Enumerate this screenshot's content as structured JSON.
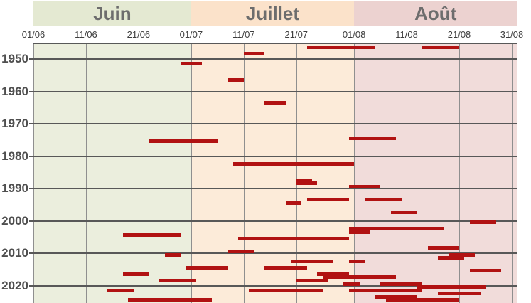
{
  "header": {
    "months": [
      {
        "label": "Juin",
        "start": "01/06",
        "end": "30/06",
        "band_color": "#e4e9d2",
        "plot_color": "#ebeedd"
      },
      {
        "label": "Juillet",
        "start": "01/07",
        "end": "31/07",
        "band_color": "#fbe2ca",
        "plot_color": "#fcebd9"
      },
      {
        "label": "Août",
        "start": "01/08",
        "end": "31/08",
        "band_color": "#ecd2d0",
        "plot_color": "#f1dcda"
      }
    ]
  },
  "x_axis": {
    "tick_labels": [
      "01/06",
      "11/06",
      "21/06",
      "01/07",
      "11/07",
      "21/07",
      "01/08",
      "11/08",
      "21/08",
      "31/08"
    ]
  },
  "y_axis": {
    "tick_labels": [
      "1950",
      "1960",
      "1970",
      "1980",
      "1990",
      "2000",
      "2010",
      "2020"
    ]
  },
  "colors": {
    "bar": "#b11212",
    "horizontal_grid": "#585858",
    "vertical_grid": "#8f8f8f",
    "month_label": "#6d6d6d",
    "date_label": "#3d3d3d",
    "year_label": "#4f4f4f"
  },
  "chart_data": {
    "type": "timeline",
    "x_range": [
      "01/06",
      "31/08"
    ],
    "y_range": [
      1946,
      2025
    ],
    "grid": "on",
    "legend": "none",
    "episodes": [
      {
        "year": 1947,
        "start": "23/07",
        "end": "04/08"
      },
      {
        "year": 1947,
        "start": "14/08",
        "end": "20/08"
      },
      {
        "year": 1949,
        "start": "11/07",
        "end": "14/07"
      },
      {
        "year": 1952,
        "start": "29/06",
        "end": "02/07"
      },
      {
        "year": 1957,
        "start": "08/07",
        "end": "10/07"
      },
      {
        "year": 1964,
        "start": "15/07",
        "end": "18/07"
      },
      {
        "year": 1975,
        "start": "31/07",
        "end": "08/08"
      },
      {
        "year": 1976,
        "start": "23/06",
        "end": "05/07"
      },
      {
        "year": 1983,
        "start": "09/07",
        "end": "31/07"
      },
      {
        "year": 1988,
        "start": "21/07",
        "end": "23/07"
      },
      {
        "year": 1989,
        "start": "21/07",
        "end": "24/07"
      },
      {
        "year": 1990,
        "start": "31/07",
        "end": "05/08"
      },
      {
        "year": 1994,
        "start": "23/07",
        "end": "30/07"
      },
      {
        "year": 1994,
        "start": "03/08",
        "end": "09/08"
      },
      {
        "year": 1995,
        "start": "19/07",
        "end": "21/07"
      },
      {
        "year": 1998,
        "start": "08/08",
        "end": "12/08"
      },
      {
        "year": 2001,
        "start": "23/08",
        "end": "27/08"
      },
      {
        "year": 2003,
        "start": "31/07",
        "end": "17/08"
      },
      {
        "year": 2004,
        "start": "31/07",
        "end": "03/08"
      },
      {
        "year": 2005,
        "start": "18/06",
        "end": "28/06"
      },
      {
        "year": 2006,
        "start": "10/07",
        "end": "30/07"
      },
      {
        "year": 2009,
        "start": "15/08",
        "end": "20/08"
      },
      {
        "year": 2010,
        "start": "08/07",
        "end": "12/07"
      },
      {
        "year": 2011,
        "start": "26/06",
        "end": "28/06"
      },
      {
        "year": 2011,
        "start": "19/08",
        "end": "23/08"
      },
      {
        "year": 2012,
        "start": "17/08",
        "end": "21/08"
      },
      {
        "year": 2013,
        "start": "20/07",
        "end": "27/07"
      },
      {
        "year": 2013,
        "start": "31/07",
        "end": "02/08"
      },
      {
        "year": 2015,
        "start": "30/06",
        "end": "07/07"
      },
      {
        "year": 2015,
        "start": "15/07",
        "end": "22/07"
      },
      {
        "year": 2016,
        "start": "23/08",
        "end": "28/08"
      },
      {
        "year": 2017,
        "start": "18/06",
        "end": "22/06"
      },
      {
        "year": 2017,
        "start": "25/07",
        "end": "30/07"
      },
      {
        "year": 2018,
        "start": "26/07",
        "end": "08/08"
      },
      {
        "year": 2019,
        "start": "25/06",
        "end": "01/07"
      },
      {
        "year": 2019,
        "start": "21/07",
        "end": "26/07"
      },
      {
        "year": 2020,
        "start": "30/07",
        "end": "01/08"
      },
      {
        "year": 2020,
        "start": "06/08",
        "end": "13/08"
      },
      {
        "year": 2021,
        "start": "13/08",
        "end": "25/08"
      },
      {
        "year": 2022,
        "start": "15/06",
        "end": "19/06"
      },
      {
        "year": 2022,
        "start": "12/07",
        "end": "25/07"
      },
      {
        "year": 2022,
        "start": "31/07",
        "end": "13/08"
      },
      {
        "year": 2023,
        "start": "17/08",
        "end": "24/08"
      },
      {
        "year": 2024,
        "start": "05/08",
        "end": "12/08"
      },
      {
        "year": 2025,
        "start": "19/06",
        "end": "04/07"
      },
      {
        "year": 2025,
        "start": "07/08",
        "end": "20/08"
      }
    ]
  }
}
